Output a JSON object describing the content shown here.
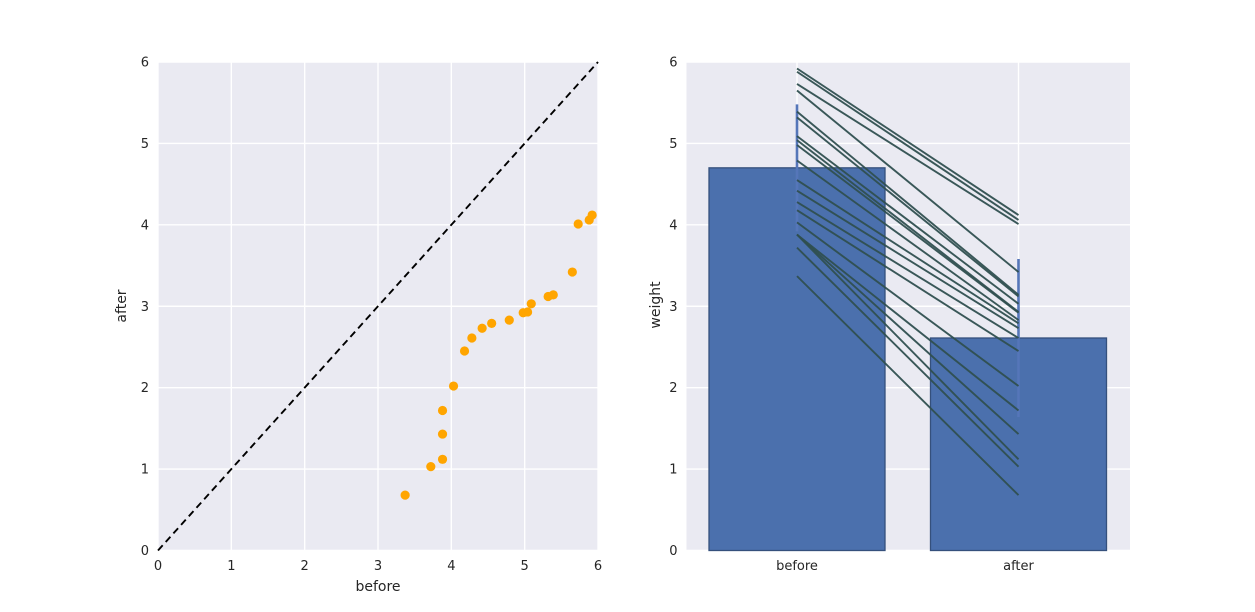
{
  "figure": {
    "background": "#ffffff"
  },
  "colors": {
    "plot_background": "#eaeaf2",
    "grid": "#ffffff",
    "text": "#262626",
    "scatter_point": "#ffa500",
    "identity_line": "#000000",
    "bar_fill": "#4b70ad",
    "bar_edge": "#35507c",
    "error_bar": "#5576b9",
    "pair_line": "#2f4f4f"
  },
  "chart_data": [
    {
      "type": "scatter",
      "title": "",
      "xlabel": "before",
      "ylabel": "after",
      "xlim": [
        0,
        6
      ],
      "ylim": [
        0,
        6
      ],
      "xticks": [
        "0",
        "1",
        "2",
        "3",
        "4",
        "5",
        "6"
      ],
      "yticks": [
        "0",
        "1",
        "2",
        "3",
        "4",
        "5",
        "6"
      ],
      "grid": true,
      "legend": false,
      "point_color": "#ffa500",
      "identity_line": {
        "style": "dashed",
        "color": "#000000",
        "x": [
          0,
          6
        ],
        "y": [
          0,
          6
        ]
      },
      "points": [
        [
          3.37,
          0.68
        ],
        [
          3.72,
          1.03
        ],
        [
          3.88,
          1.12
        ],
        [
          3.88,
          1.43
        ],
        [
          3.88,
          1.72
        ],
        [
          4.03,
          2.02
        ],
        [
          4.18,
          2.45
        ],
        [
          4.28,
          2.61
        ],
        [
          4.42,
          2.73
        ],
        [
          4.55,
          2.79
        ],
        [
          4.79,
          2.83
        ],
        [
          4.98,
          2.92
        ],
        [
          5.04,
          2.93
        ],
        [
          5.09,
          3.03
        ],
        [
          5.32,
          3.12
        ],
        [
          5.39,
          3.14
        ],
        [
          5.65,
          3.42
        ],
        [
          5.73,
          4.01
        ],
        [
          5.88,
          4.06
        ],
        [
          5.92,
          4.12
        ]
      ]
    },
    {
      "type": "bar",
      "title": "",
      "xlabel": "",
      "ylabel": "weight",
      "categories": [
        "before",
        "after"
      ],
      "values": [
        4.7,
        2.61
      ],
      "ylim": [
        0,
        6
      ],
      "yticks": [
        "0",
        "1",
        "2",
        "3",
        "4",
        "5",
        "6"
      ],
      "grid": true,
      "legend": false,
      "bar_color": "#4b70ad",
      "bar_edge_color": "#35507c",
      "error_color": "#5576b9",
      "error_bars": [
        {
          "low": 3.92,
          "high": 5.48
        },
        {
          "low": 1.64,
          "high": 3.58
        }
      ],
      "pair_lines": {
        "color": "#2f4f4f",
        "pairs": [
          [
            3.37,
            0.68
          ],
          [
            3.72,
            1.03
          ],
          [
            3.88,
            1.12
          ],
          [
            3.88,
            1.43
          ],
          [
            3.88,
            1.72
          ],
          [
            4.03,
            2.02
          ],
          [
            4.18,
            2.45
          ],
          [
            4.28,
            2.61
          ],
          [
            4.42,
            2.73
          ],
          [
            4.55,
            2.79
          ],
          [
            4.79,
            2.83
          ],
          [
            4.98,
            2.92
          ],
          [
            5.04,
            2.93
          ],
          [
            5.09,
            3.03
          ],
          [
            5.32,
            3.12
          ],
          [
            5.39,
            3.14
          ],
          [
            5.65,
            3.42
          ],
          [
            5.73,
            4.01
          ],
          [
            5.88,
            4.06
          ],
          [
            5.92,
            4.12
          ]
        ]
      }
    }
  ]
}
